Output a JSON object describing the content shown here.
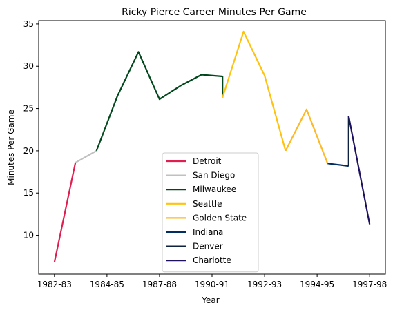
{
  "chart_data": {
    "type": "line",
    "title": "Ricky Pierce Career Minutes Per Game",
    "xlabel": "Year",
    "ylabel": "Minutes Per Game",
    "xlim": [
      -0.75,
      15.75
    ],
    "ylim": [
      5.4,
      35.4
    ],
    "x_tick_labels": [
      "1982-83",
      "1984-85",
      "1987-88",
      "1990-91",
      "1992-93",
      "1994-95",
      "1997-98"
    ],
    "y_ticks": [
      10,
      15,
      20,
      25,
      30,
      35
    ],
    "grid": false,
    "legend_position": "lower center",
    "series": [
      {
        "name": "Detroit",
        "color": "#e01e4f",
        "points": [
          [
            0,
            6.8
          ],
          [
            1,
            18.6
          ]
        ]
      },
      {
        "name": "San Diego",
        "color": "#c0c0c0",
        "points": [
          [
            1,
            18.6
          ],
          [
            2,
            20.0
          ]
        ]
      },
      {
        "name": "Milwaukee",
        "color": "#00471b",
        "points": [
          [
            2,
            20.0
          ],
          [
            3,
            26.5
          ],
          [
            4,
            31.7
          ],
          [
            5,
            26.1
          ],
          [
            6,
            27.7
          ],
          [
            7,
            29.0
          ],
          [
            8,
            28.8
          ],
          [
            8,
            26.3
          ]
        ]
      },
      {
        "name": "Seattle",
        "color": "#ffc20e",
        "points": [
          [
            8,
            26.3
          ],
          [
            9,
            34.1
          ],
          [
            10,
            28.9
          ],
          [
            11,
            20.0
          ]
        ]
      },
      {
        "name": "Golden State",
        "color": "#fdb927",
        "points": [
          [
            11,
            20.0
          ],
          [
            12,
            24.9
          ],
          [
            13,
            18.5
          ]
        ]
      },
      {
        "name": "Indiana",
        "color": "#002d62",
        "points": [
          [
            13,
            18.5
          ],
          [
            14,
            18.2
          ]
        ]
      },
      {
        "name": "Denver",
        "color": "#0e2240",
        "points": [
          [
            14,
            18.2
          ],
          [
            14,
            24.1
          ]
        ]
      },
      {
        "name": "Charlotte",
        "color": "#1d1160",
        "points": [
          [
            14,
            24.1
          ],
          [
            15,
            11.3
          ]
        ]
      }
    ]
  }
}
